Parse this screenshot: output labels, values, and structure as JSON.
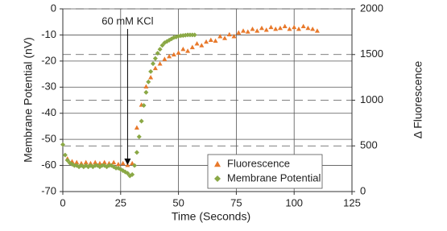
{
  "chart_data": {
    "type": "scatter",
    "xlabel": "Time (Seconds)",
    "ylabel": "Membrane Potential (nV)",
    "y2label": "Δ Fluorescence",
    "xlim": [
      0,
      125
    ],
    "xticks": [
      0,
      25,
      50,
      75,
      100,
      125
    ],
    "ylim": [
      -70,
      0
    ],
    "yticks": [
      0,
      -10,
      -20,
      -30,
      -40,
      -50,
      -60,
      -70
    ],
    "y2lim": [
      0,
      2000
    ],
    "y2ticks": [
      0,
      500,
      1000,
      1500,
      2000
    ],
    "grid": true,
    "legend": "bottom-right",
    "annotation": {
      "text": "60 mM KCl",
      "x": 28
    },
    "series": [
      {
        "name": "Fluorescence",
        "color": "#e8792b",
        "marker": "triangle",
        "axis": "y2",
        "x": [
          2,
          4,
          6,
          8,
          10,
          12,
          14,
          16,
          18,
          20,
          22,
          24,
          26,
          28,
          30,
          32,
          34,
          36,
          38,
          40,
          42,
          44,
          46,
          48,
          50,
          52,
          54,
          56,
          58,
          60,
          62,
          64,
          66,
          68,
          70,
          72,
          74,
          76,
          78,
          80,
          82,
          84,
          86,
          88,
          90,
          92,
          94,
          96,
          98,
          100,
          102,
          104,
          106,
          108,
          110
        ],
        "values": [
          360,
          330,
          320,
          310,
          320,
          310,
          320,
          310,
          320,
          310,
          320,
          300,
          310,
          290,
          310,
          700,
          950,
          1150,
          1250,
          1350,
          1400,
          1450,
          1480,
          1500,
          1520,
          1560,
          1540,
          1580,
          1620,
          1600,
          1640,
          1660,
          1650,
          1700,
          1680,
          1720,
          1700,
          1740,
          1760,
          1750,
          1780,
          1760,
          1790,
          1770,
          1800,
          1780,
          1790,
          1810,
          1780,
          1800,
          1780,
          1810,
          1790,
          1780,
          1760
        ]
      },
      {
        "name": "Membrane Potential",
        "color": "#8aa845",
        "marker": "diamond",
        "x": [
          0,
          1,
          2,
          3,
          4,
          5,
          6,
          7,
          8,
          9,
          10,
          11,
          12,
          13,
          14,
          15,
          16,
          17,
          18,
          19,
          20,
          21,
          22,
          23,
          24,
          25,
          26,
          27,
          28,
          29,
          30,
          31,
          32,
          33,
          34,
          35,
          36,
          37,
          38,
          39,
          40,
          41,
          42,
          43,
          44,
          45,
          46,
          47,
          48,
          49,
          50,
          51,
          52,
          53,
          54,
          55,
          56,
          57
        ],
        "values": [
          -52,
          -56,
          -58,
          -59,
          -59.5,
          -60,
          -60,
          -60.5,
          -60,
          -60.5,
          -60,
          -60.5,
          -60,
          -60.5,
          -60,
          -60,
          -60.5,
          -60,
          -60,
          -60.5,
          -60,
          -60,
          -60.5,
          -61,
          -61,
          -61.5,
          -62,
          -62.5,
          -63,
          -64,
          -63.5,
          -60,
          -55,
          -49,
          -43,
          -37,
          -32,
          -28,
          -24,
          -21,
          -19,
          -17,
          -15.5,
          -14,
          -13,
          -12.5,
          -12,
          -11.5,
          -11,
          -10.8,
          -10.5,
          -10.3,
          -10.2,
          -10.1,
          -10,
          -10,
          -10,
          -10
        ]
      }
    ]
  }
}
